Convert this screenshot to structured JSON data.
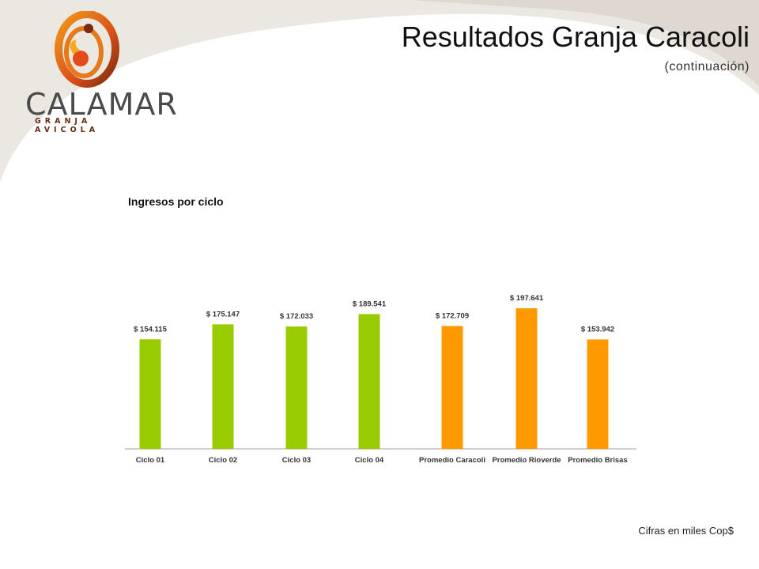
{
  "header": {
    "title": "Resultados Granja Caracoli",
    "subtitle": "(continuación)"
  },
  "logo": {
    "name": "CALAMAR",
    "tagline": "GRANJA AVICOLA"
  },
  "chart_heading": "Ingresos por ciclo",
  "footnote": "Cifras en miles Cop$",
  "colors": {
    "cycle_bar": "#99cc00",
    "average_bar": "#ff9900",
    "background_swoosh": "#ece8e2"
  },
  "chart_data": {
    "type": "bar",
    "title": "Ingresos por ciclo",
    "categories": [
      "Ciclo 01",
      "Ciclo 02",
      "Ciclo 03",
      "Ciclo 04",
      "Promedio Caracoli",
      "Promedio Rioverde",
      "Promedio Brisas"
    ],
    "values": [
      154.115,
      175.147,
      172.033,
      189.541,
      172.709,
      197.641,
      153.942
    ],
    "value_labels": [
      "$ 154.115",
      "$ 175.147",
      "$ 172.033",
      "$ 189.541",
      "$ 172.709",
      "$ 197.641",
      "$ 153.942"
    ],
    "bar_colors": [
      "#99cc00",
      "#99cc00",
      "#99cc00",
      "#99cc00",
      "#ff9900",
      "#ff9900",
      "#ff9900"
    ],
    "xlabel": "",
    "ylabel": "",
    "ylim": [
      0,
      220
    ],
    "grid": false,
    "legend": "none"
  }
}
